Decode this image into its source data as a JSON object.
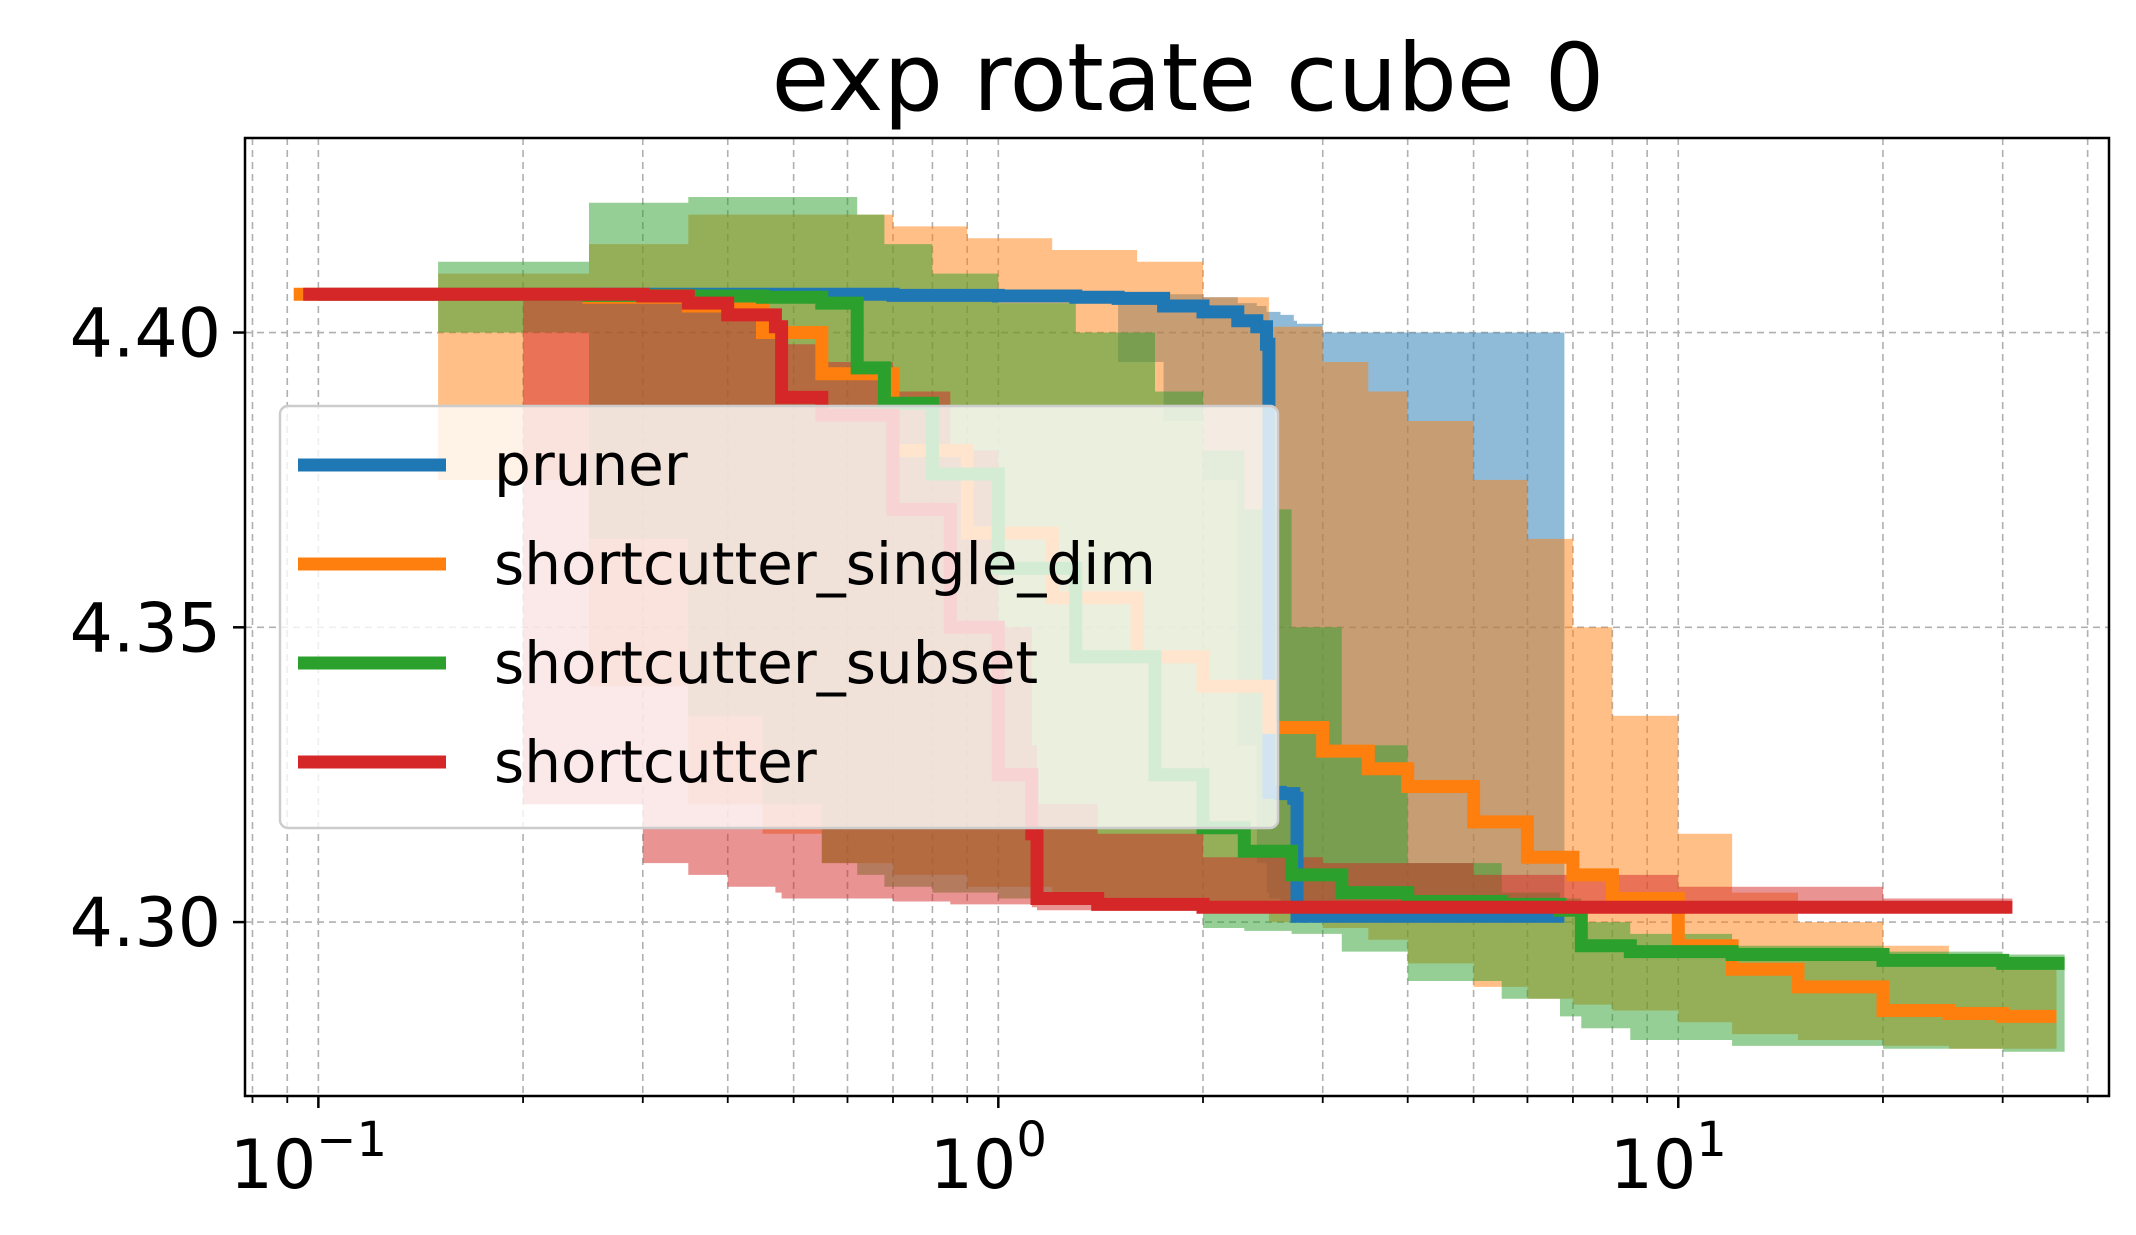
{
  "chart_data": {
    "type": "line",
    "title": "exp rotate cube 0",
    "xlabel": "",
    "ylabel": "",
    "xscale": "log",
    "xlim": [
      0.078,
      43
    ],
    "ylim": [
      4.2705,
      4.433
    ],
    "grid": true,
    "legend_position": "center-left",
    "y_ticks": [
      {
        "value": 4.3,
        "label": "4.30"
      },
      {
        "value": 4.35,
        "label": "4.35"
      },
      {
        "value": 4.4,
        "label": "4.40"
      }
    ],
    "x_ticks": [
      {
        "value": 0.1,
        "base": "10",
        "exp": "−1"
      },
      {
        "value": 1,
        "base": "10",
        "exp": "0"
      },
      {
        "value": 10,
        "base": "10",
        "exp": "1"
      }
    ],
    "series": [
      {
        "name": "pruner",
        "color": "#1f77b4",
        "band_color": "#1f77b4",
        "x": [
          0.1,
          0.3,
          0.5,
          0.7,
          1.0,
          1.3,
          1.5,
          1.75,
          2.0,
          2.25,
          2.4,
          2.48,
          2.5,
          2.6,
          2.72,
          2.75,
          3.0,
          6.8
        ],
        "y": [
          4.4065,
          4.4065,
          4.4065,
          4.4063,
          4.4062,
          4.406,
          4.4058,
          4.4045,
          4.4035,
          4.402,
          4.401,
          4.398,
          4.322,
          4.3218,
          4.321,
          4.301,
          4.301,
          4.301
        ],
        "upper": [
          4.4065,
          4.4065,
          4.4065,
          4.4065,
          4.4065,
          4.4065,
          4.4065,
          4.4065,
          4.406,
          4.405,
          4.4045,
          4.4035,
          4.4035,
          4.403,
          4.402,
          4.4015,
          4.4,
          4.4
        ],
        "lower": [
          4.4065,
          4.4065,
          4.4065,
          4.406,
          4.4058,
          4.405,
          4.395,
          4.385,
          4.375,
          4.33,
          4.31,
          4.305,
          4.304,
          4.303,
          4.302,
          4.3015,
          4.301,
          4.301
        ]
      },
      {
        "name": "shortcutter_single_dim",
        "color": "#ff7f0e",
        "band_color": "#ff7f0e",
        "x": [
          0.092,
          0.15,
          0.25,
          0.35,
          0.45,
          0.55,
          0.7,
          0.9,
          1.2,
          1.6,
          2.0,
          2.5,
          3.0,
          3.5,
          4.0,
          5.0,
          6.0,
          7.0,
          8.0,
          10.0,
          12.0,
          15.0,
          20.0,
          25.0,
          30.0,
          36.0
        ],
        "y": [
          4.4065,
          4.4065,
          4.406,
          4.4045,
          4.4,
          4.393,
          4.38,
          4.366,
          4.355,
          4.345,
          4.34,
          4.333,
          4.329,
          4.326,
          4.323,
          4.317,
          4.311,
          4.308,
          4.304,
          4.296,
          4.292,
          4.289,
          4.285,
          4.2845,
          4.284,
          4.284
        ],
        "upper": [
          4.4065,
          4.41,
          4.415,
          4.42,
          4.42,
          4.42,
          4.418,
          4.416,
          4.414,
          4.412,
          4.406,
          4.401,
          4.395,
          4.39,
          4.385,
          4.375,
          4.365,
          4.35,
          4.335,
          4.315,
          4.305,
          4.3,
          4.296,
          4.2945,
          4.2935,
          4.293
        ],
        "lower": [
          4.4065,
          4.375,
          4.34,
          4.32,
          4.315,
          4.31,
          4.308,
          4.306,
          4.304,
          4.303,
          4.302,
          4.3,
          4.299,
          4.297,
          4.293,
          4.289,
          4.287,
          4.286,
          4.285,
          4.283,
          4.281,
          4.28,
          4.279,
          4.2785,
          4.2785,
          4.2785
        ]
      },
      {
        "name": "shortcutter_subset",
        "color": "#2ca02c",
        "band_color": "#2ca02c",
        "x": [
          0.15,
          0.25,
          0.35,
          0.45,
          0.55,
          0.62,
          0.68,
          0.8,
          1.0,
          1.3,
          1.7,
          2.0,
          2.3,
          2.7,
          3.2,
          4.0,
          5.5,
          6.7,
          7.2,
          8.5,
          12.0,
          20.0,
          30.0,
          37.0
        ],
        "y": [
          4.4065,
          4.4063,
          4.4062,
          4.406,
          4.405,
          4.394,
          4.388,
          4.376,
          4.36,
          4.345,
          4.325,
          4.316,
          4.312,
          4.308,
          4.305,
          4.3035,
          4.303,
          4.302,
          4.296,
          4.295,
          4.2945,
          4.2935,
          4.293,
          4.293
        ],
        "upper": [
          4.412,
          4.422,
          4.423,
          4.423,
          4.423,
          4.42,
          4.415,
          4.41,
          4.405,
          4.4,
          4.39,
          4.38,
          4.37,
          4.35,
          4.33,
          4.31,
          4.305,
          4.304,
          4.3,
          4.298,
          4.296,
          4.295,
          4.2945,
          4.2945
        ],
        "lower": [
          4.4,
          4.365,
          4.335,
          4.32,
          4.31,
          4.308,
          4.306,
          4.305,
          4.304,
          4.303,
          4.302,
          4.299,
          4.2985,
          4.298,
          4.295,
          4.29,
          4.287,
          4.284,
          4.282,
          4.28,
          4.279,
          4.2785,
          4.278,
          4.278
        ]
      },
      {
        "name": "shortcutter",
        "color": "#d62728",
        "band_color": "#d62728",
        "x": [
          0.095,
          0.2,
          0.3,
          0.35,
          0.4,
          0.47,
          0.48,
          0.55,
          0.7,
          0.85,
          1.0,
          1.12,
          1.14,
          1.4,
          2.0,
          3.0,
          5.0,
          10.0,
          20.0,
          31.0
        ],
        "y": [
          4.4065,
          4.4065,
          4.4062,
          4.405,
          4.403,
          4.401,
          4.389,
          4.386,
          4.37,
          4.35,
          4.325,
          4.315,
          4.304,
          4.303,
          4.3025,
          4.3025,
          4.3025,
          4.3025,
          4.3025,
          4.3025
        ],
        "upper": [
          4.4065,
          4.4065,
          4.406,
          4.405,
          4.403,
          4.401,
          4.398,
          4.395,
          4.39,
          4.38,
          4.35,
          4.33,
          4.32,
          4.315,
          4.311,
          4.31,
          4.308,
          4.306,
          4.304,
          4.303
        ],
        "lower": [
          4.4065,
          4.32,
          4.31,
          4.308,
          4.306,
          4.305,
          4.304,
          4.304,
          4.3035,
          4.303,
          4.303,
          4.3025,
          4.302,
          4.302,
          4.302,
          4.302,
          4.302,
          4.302,
          4.302,
          4.302
        ]
      }
    ]
  }
}
